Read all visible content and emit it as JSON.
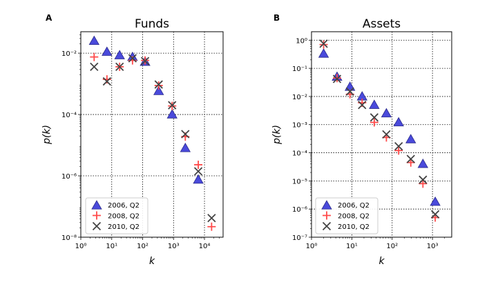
{
  "figure_colors": {
    "triangle": "#4a4adb",
    "plus": "#ff4a4a",
    "cross": "#444444"
  },
  "chart_data": [
    {
      "type": "scatter",
      "panel_letter": "A",
      "title": "Funds",
      "xlabel": "k",
      "ylabel": "p(k)",
      "xscale": "log",
      "yscale": "log",
      "xlim": [
        1,
        40000
      ],
      "ylim": [
        1e-08,
        0.05
      ],
      "xticks": [
        1,
        10,
        100,
        1000,
        10000
      ],
      "xtick_labels": [
        "10⁰",
        "10¹",
        "10²",
        "10³",
        "10⁴"
      ],
      "yticks": [
        1e-08,
        1e-06,
        0.0001,
        0.01
      ],
      "ytick_labels": [
        "10⁻⁸",
        "10⁻⁶",
        "10⁻⁴",
        "10⁻²"
      ],
      "grid": true,
      "legend_position": "lower-left",
      "series": [
        {
          "name": "2006, Q2",
          "marker": "triangle",
          "x": [
            2.7,
            7,
            18,
            47,
            120,
            330,
            900,
            2400,
            6300
          ],
          "y": [
            0.025,
            0.011,
            0.0085,
            0.0075,
            0.0052,
            0.00058,
            0.0001,
            8e-06,
            7.5e-07
          ]
        },
        {
          "name": "2008, Q2",
          "marker": "plus",
          "x": [
            2.7,
            7,
            18,
            47,
            120,
            330,
            900,
            2400,
            6300,
            17000
          ],
          "y": [
            0.0075,
            0.0014,
            0.0036,
            0.0058,
            0.0058,
            0.00088,
            0.00019,
            1.9e-05,
            2.3e-06,
            2.2e-08
          ]
        },
        {
          "name": "2010, Q2",
          "marker": "cross",
          "x": [
            2.7,
            7,
            18,
            47,
            120,
            330,
            900,
            2400,
            6300,
            17000
          ],
          "y": [
            0.0036,
            0.0012,
            0.0036,
            0.0068,
            0.0055,
            0.00095,
            0.0002,
            2.3e-05,
            1.4e-06,
            4.2e-08
          ]
        }
      ]
    },
    {
      "type": "scatter",
      "panel_letter": "B",
      "title": "Assets",
      "xlabel": "k",
      "ylabel": "p(k)",
      "xscale": "log",
      "yscale": "log",
      "xlim": [
        1,
        3000
      ],
      "ylim": [
        1e-07,
        2
      ],
      "xticks": [
        1,
        10,
        100,
        1000
      ],
      "xtick_labels": [
        "10⁰",
        "10¹",
        "10²",
        "10³"
      ],
      "yticks": [
        1e-07,
        1e-06,
        1e-05,
        0.0001,
        0.001,
        0.01,
        0.1,
        1
      ],
      "ytick_labels": [
        "10⁻⁷",
        "10⁻⁶",
        "10⁻⁵",
        "10⁻⁴",
        "10⁻³",
        "10⁻²",
        "10⁻¹",
        "10⁰"
      ],
      "grid": true,
      "legend_position": "lower-left",
      "series": [
        {
          "name": "2006, Q2",
          "marker": "triangle",
          "x": [
            2,
            4.3,
            9,
            18,
            36,
            72,
            145,
            290,
            580,
            1170
          ],
          "y": [
            0.33,
            0.05,
            0.022,
            0.01,
            0.005,
            0.0025,
            0.0012,
            0.0003,
            4e-05,
            1.8e-06
          ]
        },
        {
          "name": "2008, Q2",
          "marker": "plus",
          "x": [
            2,
            4.3,
            9,
            18,
            36,
            72,
            145,
            290,
            580,
            1170
          ],
          "y": [
            0.7,
            0.045,
            0.012,
            0.006,
            0.0012,
            0.00035,
            0.00012,
            4.5e-05,
            8e-06,
            5e-07
          ]
        },
        {
          "name": "2010, Q2",
          "marker": "cross",
          "x": [
            2,
            4.3,
            9,
            18,
            36,
            72,
            145,
            290,
            580,
            1170
          ],
          "y": [
            0.75,
            0.042,
            0.015,
            0.005,
            0.0018,
            0.00045,
            0.00017,
            6e-05,
            1.1e-05,
            6.5e-07
          ]
        }
      ]
    }
  ]
}
